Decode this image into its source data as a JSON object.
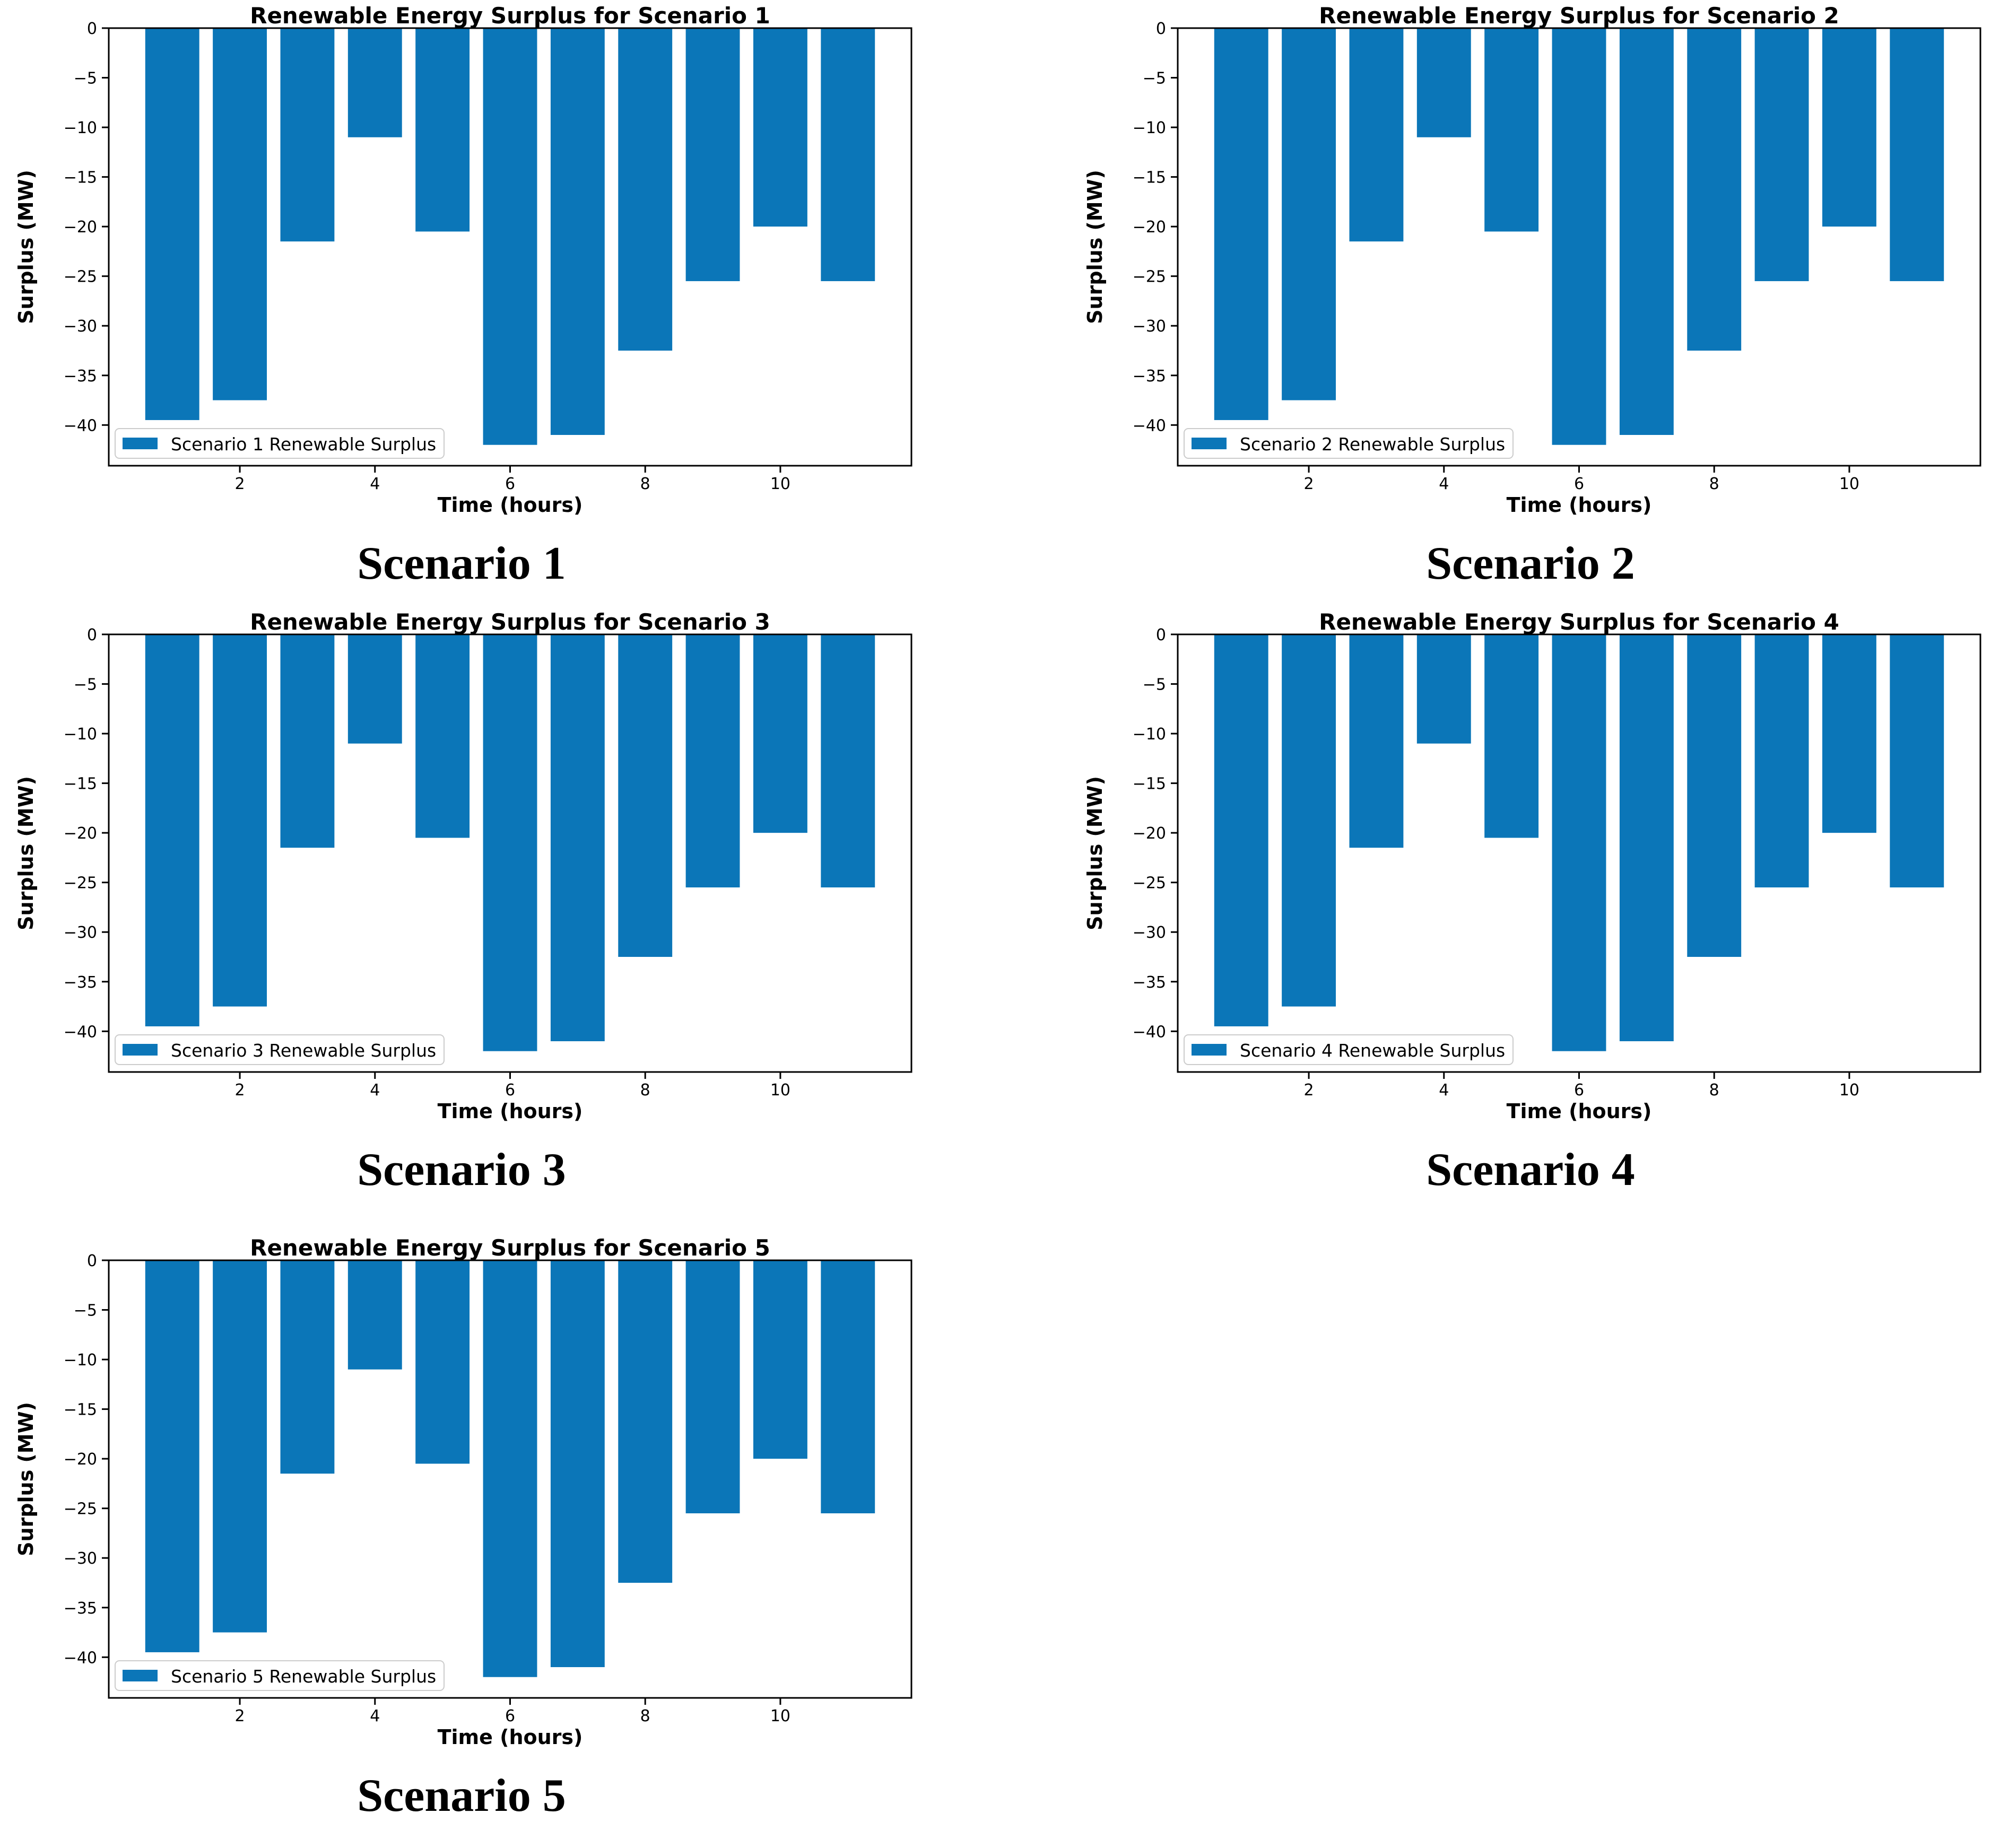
{
  "page": {
    "background": "#ffffff",
    "text_color": "#000000"
  },
  "chart_data": [
    {
      "type": "bar",
      "title": "Renewable Energy Surplus for Scenario 1",
      "xlabel": "Time (hours)",
      "ylabel": "Surplus (MW)",
      "legend_label": "Scenario 1 Renewable Surplus",
      "caption": "Scenario 1",
      "x": [
        1,
        2,
        3,
        4,
        5,
        6,
        7,
        8,
        9,
        10,
        11
      ],
      "values": [
        -39.5,
        -37.5,
        -21.5,
        -11,
        -20.5,
        -42,
        -41,
        -32.5,
        -25.5,
        -20,
        -25.5
      ],
      "bar_width": 0.8,
      "bar_color": "#0b76b8",
      "xlim": [
        0.06,
        11.94
      ],
      "ylim": [
        -44.1,
        0
      ],
      "xticks": [
        2,
        4,
        6,
        8,
        10
      ],
      "yticks": [
        0,
        -5,
        -10,
        -15,
        -20,
        -25,
        -30,
        -35,
        -40
      ],
      "legend_position": "lower-left",
      "grid": false
    },
    {
      "type": "bar",
      "title": "Renewable Energy Surplus for Scenario 2",
      "xlabel": "Time (hours)",
      "ylabel": "Surplus (MW)",
      "legend_label": "Scenario 2 Renewable Surplus",
      "caption": "Scenario 2",
      "x": [
        1,
        2,
        3,
        4,
        5,
        6,
        7,
        8,
        9,
        10,
        11
      ],
      "values": [
        -39.5,
        -37.5,
        -21.5,
        -11,
        -20.5,
        -42,
        -41,
        -32.5,
        -25.5,
        -20,
        -25.5
      ],
      "bar_width": 0.8,
      "bar_color": "#0b76b8",
      "xlim": [
        0.06,
        11.94
      ],
      "ylim": [
        -44.1,
        0
      ],
      "xticks": [
        2,
        4,
        6,
        8,
        10
      ],
      "yticks": [
        0,
        -5,
        -10,
        -15,
        -20,
        -25,
        -30,
        -35,
        -40
      ],
      "legend_position": "lower-left",
      "grid": false
    },
    {
      "type": "bar",
      "title": "Renewable Energy Surplus for Scenario 3",
      "xlabel": "Time (hours)",
      "ylabel": "Surplus (MW)",
      "legend_label": "Scenario 3 Renewable Surplus",
      "caption": "Scenario 3",
      "x": [
        1,
        2,
        3,
        4,
        5,
        6,
        7,
        8,
        9,
        10,
        11
      ],
      "values": [
        -39.5,
        -37.5,
        -21.5,
        -11,
        -20.5,
        -42,
        -41,
        -32.5,
        -25.5,
        -20,
        -25.5
      ],
      "bar_width": 0.8,
      "bar_color": "#0b76b8",
      "xlim": [
        0.06,
        11.94
      ],
      "ylim": [
        -44.1,
        0
      ],
      "xticks": [
        2,
        4,
        6,
        8,
        10
      ],
      "yticks": [
        0,
        -5,
        -10,
        -15,
        -20,
        -25,
        -30,
        -35,
        -40
      ],
      "legend_position": "lower-left",
      "grid": false
    },
    {
      "type": "bar",
      "title": "Renewable Energy Surplus for Scenario 4",
      "xlabel": "Time (hours)",
      "ylabel": "Surplus (MW)",
      "legend_label": "Scenario 4 Renewable Surplus",
      "caption": "Scenario 4",
      "x": [
        1,
        2,
        3,
        4,
        5,
        6,
        7,
        8,
        9,
        10,
        11
      ],
      "values": [
        -39.5,
        -37.5,
        -21.5,
        -11,
        -20.5,
        -42,
        -41,
        -32.5,
        -25.5,
        -20,
        -25.5
      ],
      "bar_width": 0.8,
      "bar_color": "#0b76b8",
      "xlim": [
        0.06,
        11.94
      ],
      "ylim": [
        -44.1,
        0
      ],
      "xticks": [
        2,
        4,
        6,
        8,
        10
      ],
      "yticks": [
        0,
        -5,
        -10,
        -15,
        -20,
        -25,
        -30,
        -35,
        -40
      ],
      "legend_position": "lower-left",
      "grid": false
    },
    {
      "type": "bar",
      "title": "Renewable Energy Surplus for Scenario 5",
      "xlabel": "Time (hours)",
      "ylabel": "Surplus (MW)",
      "legend_label": "Scenario 5 Renewable Surplus",
      "caption": "Scenario 5",
      "x": [
        1,
        2,
        3,
        4,
        5,
        6,
        7,
        8,
        9,
        10,
        11
      ],
      "values": [
        -39.5,
        -37.5,
        -21.5,
        -11,
        -20.5,
        -42,
        -41,
        -32.5,
        -25.5,
        -20,
        -25.5
      ],
      "bar_width": 0.8,
      "bar_color": "#0b76b8",
      "xlim": [
        0.06,
        11.94
      ],
      "ylim": [
        -44.1,
        0
      ],
      "xticks": [
        2,
        4,
        6,
        8,
        10
      ],
      "yticks": [
        0,
        -5,
        -10,
        -15,
        -20,
        -25,
        -30,
        -35,
        -40
      ],
      "legend_position": "lower-left",
      "grid": false
    }
  ]
}
